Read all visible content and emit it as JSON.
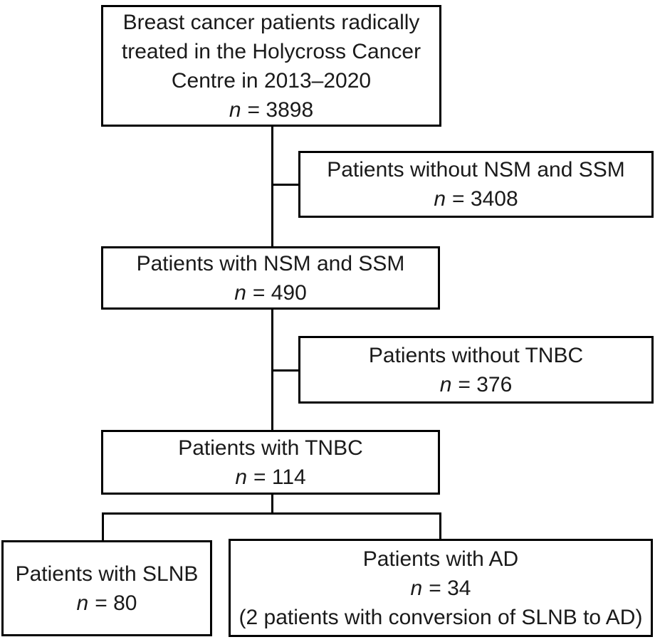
{
  "diagram": {
    "type": "flowchart",
    "background_color": "#ffffff",
    "line_color": "#000000",
    "text_color": "#1a1a1a"
  },
  "boxes": {
    "total": {
      "lines": [
        "Breast cancer patients radically",
        "treated in the Holycross Cancer",
        "Centre in 2013–2020"
      ],
      "n_symbol": "n",
      "n_value": "= 3898"
    },
    "without_nsm_ssm": {
      "lines": [
        "Patients without NSM and SSM"
      ],
      "n_symbol": "n",
      "n_value": "= 3408"
    },
    "with_nsm_ssm": {
      "lines": [
        "Patients with NSM and SSM"
      ],
      "n_symbol": "n",
      "n_value": "= 490"
    },
    "without_tnbc": {
      "lines": [
        "Patients without TNBC"
      ],
      "n_symbol": "n",
      "n_value": "= 376"
    },
    "with_tnbc": {
      "lines": [
        "Patients with TNBC"
      ],
      "n_symbol": "n",
      "n_value": "= 114"
    },
    "slnb": {
      "lines": [
        "Patients with SLNB"
      ],
      "n_symbol": "n",
      "n_value": "= 80"
    },
    "ad": {
      "lines": [
        "Patients with AD"
      ],
      "n_symbol": "n",
      "n_value": "= 34",
      "note": "(2 patients with conversion of SLNB to AD)"
    }
  }
}
